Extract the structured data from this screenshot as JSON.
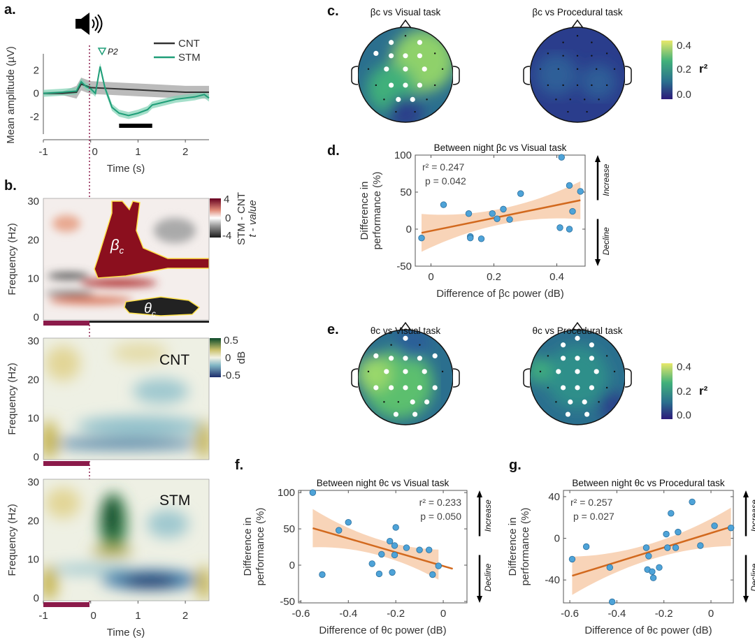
{
  "panels": {
    "a": "a.",
    "b": "b.",
    "c": "c.",
    "d": "d.",
    "e": "e.",
    "f": "f.",
    "g": "g."
  },
  "colors": {
    "cnt": "#333333",
    "stm": "#1f9e78",
    "fit": "#d2691e",
    "band": "#f6c9a6",
    "point": "#4ea3d8",
    "marker": "#8b1a4a"
  },
  "panel_a": {
    "ylabel": "Mean amplitude (µV)",
    "xlabel": "Time (s)",
    "legend": [
      "CNT",
      "STM"
    ],
    "peak_label": "P2",
    "icon": "speaker-icon"
  },
  "panel_b": {
    "ylabel": "Frequency (Hz)",
    "xlabel": "Time (s)",
    "cb1_title": "STM - CNT",
    "cb1_sub": "t - value",
    "cb1_ticks": [
      "4",
      "0",
      "-4"
    ],
    "cb2_title": "dB",
    "cb2_ticks": [
      "0.5",
      "0",
      "-0.5"
    ],
    "beta_label": "β",
    "theta_label": "θ",
    "sub": "c",
    "cnt_label": "CNT",
    "stm_label": "STM",
    "yticks": [
      "30",
      "20",
      "10",
      "0"
    ],
    "xticks": [
      "-1",
      "0",
      "1",
      "2"
    ]
  },
  "panel_c": {
    "titles": [
      "βc  vs Visual task",
      "βc  vs  Procedural task"
    ],
    "cb_ticks": [
      "0.4",
      "0.2",
      "0.0"
    ],
    "cb_label": "r²"
  },
  "panel_e": {
    "titles": [
      "θc  vs Visual task",
      "θc  vs  Procedural task"
    ],
    "cb_ticks": [
      "0.4",
      "0.2",
      "0.0"
    ],
    "cb_label": "r²"
  },
  "arrows": {
    "increase": "Increase",
    "decline": "Decline"
  },
  "chart_data": [
    {
      "id": "a",
      "type": "line",
      "xlabel": "Time (s)",
      "ylabel": "Mean amplitude (µV)",
      "xlim": [
        -1,
        2.5
      ],
      "ylim": [
        -3.5,
        3.4
      ],
      "xticks": [
        -1,
        0,
        1,
        2
      ],
      "yticks": [
        2,
        0,
        -2
      ],
      "series": [
        {
          "name": "CNT",
          "x": [
            -1,
            -0.6,
            -0.3,
            -0.2,
            0,
            0.5,
            1,
            1.5,
            2,
            2.5
          ],
          "y": [
            0,
            0,
            0.1,
            0.8,
            0.5,
            0.4,
            0.3,
            0.2,
            0.1,
            0.1
          ]
        },
        {
          "name": "STM",
          "x": [
            -1,
            -0.6,
            -0.3,
            -0.2,
            -0.1,
            0,
            0.1,
            0.2,
            0.3,
            0.45,
            0.6,
            0.8,
            1.0,
            1.2,
            1.3,
            1.5,
            1.8,
            2.0,
            2.2,
            2.4,
            2.5
          ],
          "y": [
            0,
            0.1,
            0.2,
            1.0,
            0.6,
            0.4,
            0.0,
            2.3,
            0.5,
            -1.2,
            -1.7,
            -1.9,
            -1.7,
            -1.4,
            -1.0,
            -0.8,
            -0.5,
            -0.4,
            -0.3,
            -0.1,
            -0.4
          ]
        }
      ],
      "significance_bar": [
        0.6,
        1.3
      ]
    },
    {
      "id": "d",
      "type": "scatter",
      "title": "Between night βc vs Visual task",
      "xlabel": "Difference of βc power (dB)",
      "ylabel": [
        "Difference in",
        "performance (%)"
      ],
      "xlim": [
        -0.05,
        0.49
      ],
      "ylim": [
        -50,
        100
      ],
      "xticks": [
        0,
        0.2,
        0.4
      ],
      "yticks": [
        100,
        50,
        0,
        -50
      ],
      "stats": [
        "r² = 0.247",
        "p = 0.042"
      ],
      "x": [
        -0.03,
        0.04,
        0.12,
        0.125,
        0.125,
        0.16,
        0.195,
        0.21,
        0.23,
        0.25,
        0.285,
        0.41,
        0.415,
        0.44,
        0.44,
        0.45,
        0.475
      ],
      "y": [
        -12,
        33,
        21,
        -10,
        -12,
        -13,
        21,
        14,
        27,
        13,
        48,
        2,
        97,
        59,
        0,
        24,
        51
      ],
      "fit": [
        [
          -0.03,
          -5
        ],
        [
          0.475,
          39
        ]
      ]
    },
    {
      "id": "f",
      "type": "scatter",
      "title": "Between night θc vs Visual task",
      "xlabel": "Difference of θc power (dB)",
      "ylabel": [
        "Difference in",
        "performance (%)"
      ],
      "xlim": [
        -0.61,
        0.1
      ],
      "ylim": [
        -52,
        103
      ],
      "xticks": [
        -0.6,
        -0.4,
        -0.2,
        0
      ],
      "yticks": [
        100,
        50,
        0,
        -50
      ],
      "stats": [
        "r² = 0.233",
        "p = 0.050"
      ],
      "x": [
        -0.55,
        -0.51,
        -0.44,
        -0.4,
        -0.3,
        -0.27,
        -0.26,
        -0.225,
        -0.215,
        -0.205,
        -0.205,
        -0.2,
        -0.155,
        -0.1,
        -0.06,
        -0.045,
        -0.02
      ],
      "y": [
        100,
        -13,
        48,
        59,
        2,
        -12,
        15,
        33,
        -10,
        27,
        14,
        52,
        24,
        21,
        21,
        -13,
        -1
      ],
      "fit": [
        [
          -0.55,
          51
        ],
        [
          0.04,
          -5
        ]
      ]
    },
    {
      "id": "g",
      "type": "scatter",
      "title": "Between night θc vs Procedural task",
      "xlabel": "Difference of θc power (dB)",
      "ylabel": [
        "Difference in",
        "performance (%)"
      ],
      "xlim": [
        -0.627,
        0.095
      ],
      "ylim": [
        -62,
        46
      ],
      "xticks": [
        -0.6,
        -0.4,
        -0.2,
        0
      ],
      "yticks": [
        40,
        0,
        -40
      ],
      "stats": [
        "r² = 0.257",
        "p = 0.027"
      ],
      "x": [
        -0.59,
        -0.53,
        -0.43,
        -0.42,
        -0.275,
        -0.27,
        -0.265,
        -0.25,
        -0.245,
        -0.22,
        -0.19,
        -0.185,
        -0.17,
        -0.15,
        -0.14,
        -0.08,
        -0.045,
        0.015,
        0.085
      ],
      "y": [
        -20,
        -8,
        -28,
        -61,
        -9,
        -30,
        -17,
        -32,
        -38,
        -28,
        4,
        -9,
        24,
        -9,
        6,
        35,
        -7,
        12,
        10
      ],
      "fit": [
        [
          -0.59,
          -36
        ],
        [
          0.085,
          11
        ]
      ]
    }
  ]
}
